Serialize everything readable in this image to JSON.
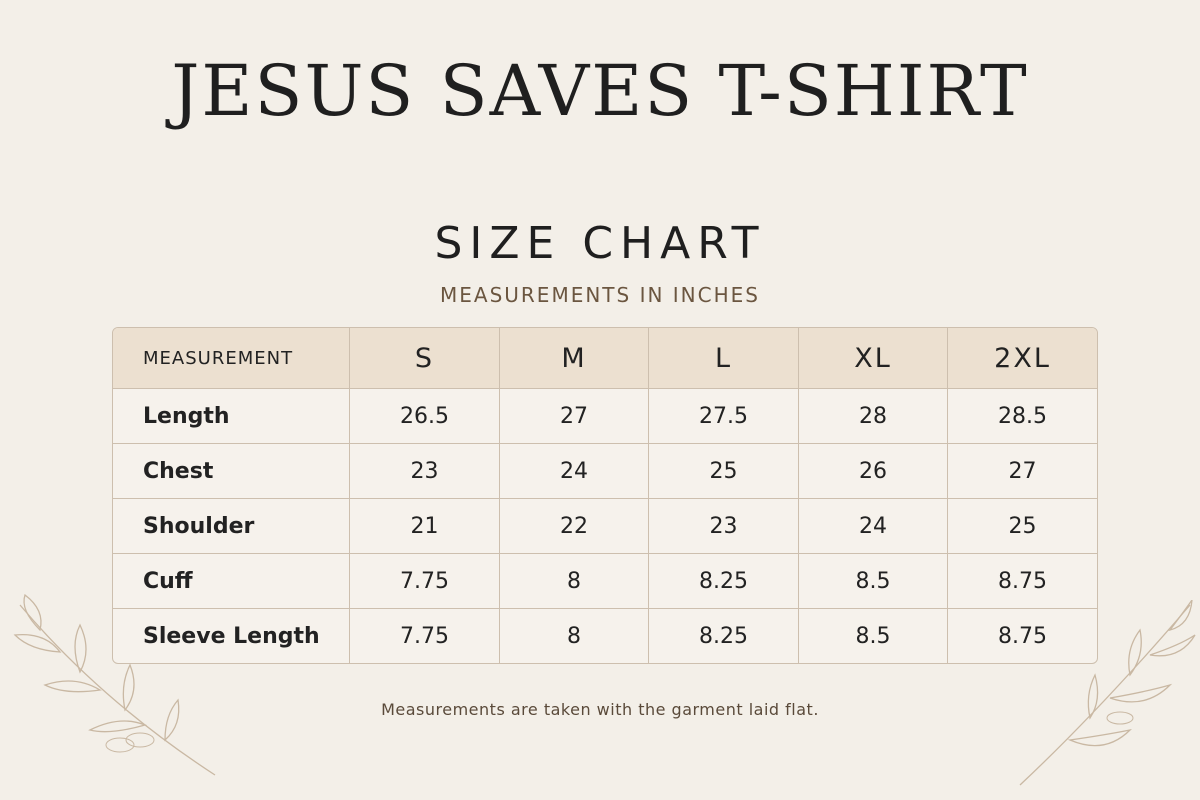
{
  "header": {
    "title": "JESUS SAVES T-SHIRT",
    "heading": "SIZE CHART",
    "subheading": "MEASUREMENTS IN INCHES"
  },
  "table": {
    "columns": [
      "MEASUREMENT",
      "S",
      "M",
      "L",
      "XL",
      "2XL"
    ],
    "rows": [
      [
        "Length",
        "26.5",
        "27",
        "27.5",
        "28",
        "28.5"
      ],
      [
        "Chest",
        "23",
        "24",
        "25",
        "26",
        "27"
      ],
      [
        "Shoulder",
        "21",
        "22",
        "23",
        "24",
        "25"
      ],
      [
        "Cuff",
        "7.75",
        "8",
        "8.25",
        "8.5",
        "8.75"
      ],
      [
        "Sleeve Length",
        "7.75",
        "8",
        "8.25",
        "8.5",
        "8.75"
      ]
    ]
  },
  "footnote": "Measurements are taken with the garment laid flat."
}
